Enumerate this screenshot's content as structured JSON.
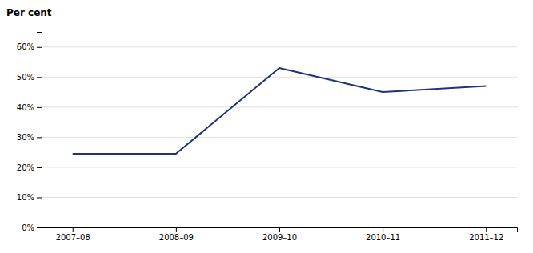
{
  "chart_data": {
    "type": "line",
    "ylabel": "Per cent",
    "categories": [
      "2007–08",
      "2008–09",
      "2009–10",
      "2010–11",
      "2011–12"
    ],
    "values": [
      0.245,
      0.245,
      0.53,
      0.45,
      0.47
    ],
    "color": "#1F3478",
    "ylim": [
      0,
      0.65
    ],
    "yticks": [
      {
        "value": 0.0,
        "label": "0%"
      },
      {
        "value": 0.1,
        "label": "10%"
      },
      {
        "value": 0.2,
        "label": "20%"
      },
      {
        "value": 0.3,
        "label": "30%"
      },
      {
        "value": 0.4,
        "label": "40%"
      },
      {
        "value": 0.5,
        "label": "50%"
      },
      {
        "value": 0.6,
        "label": "60%"
      }
    ],
    "grid": true
  }
}
